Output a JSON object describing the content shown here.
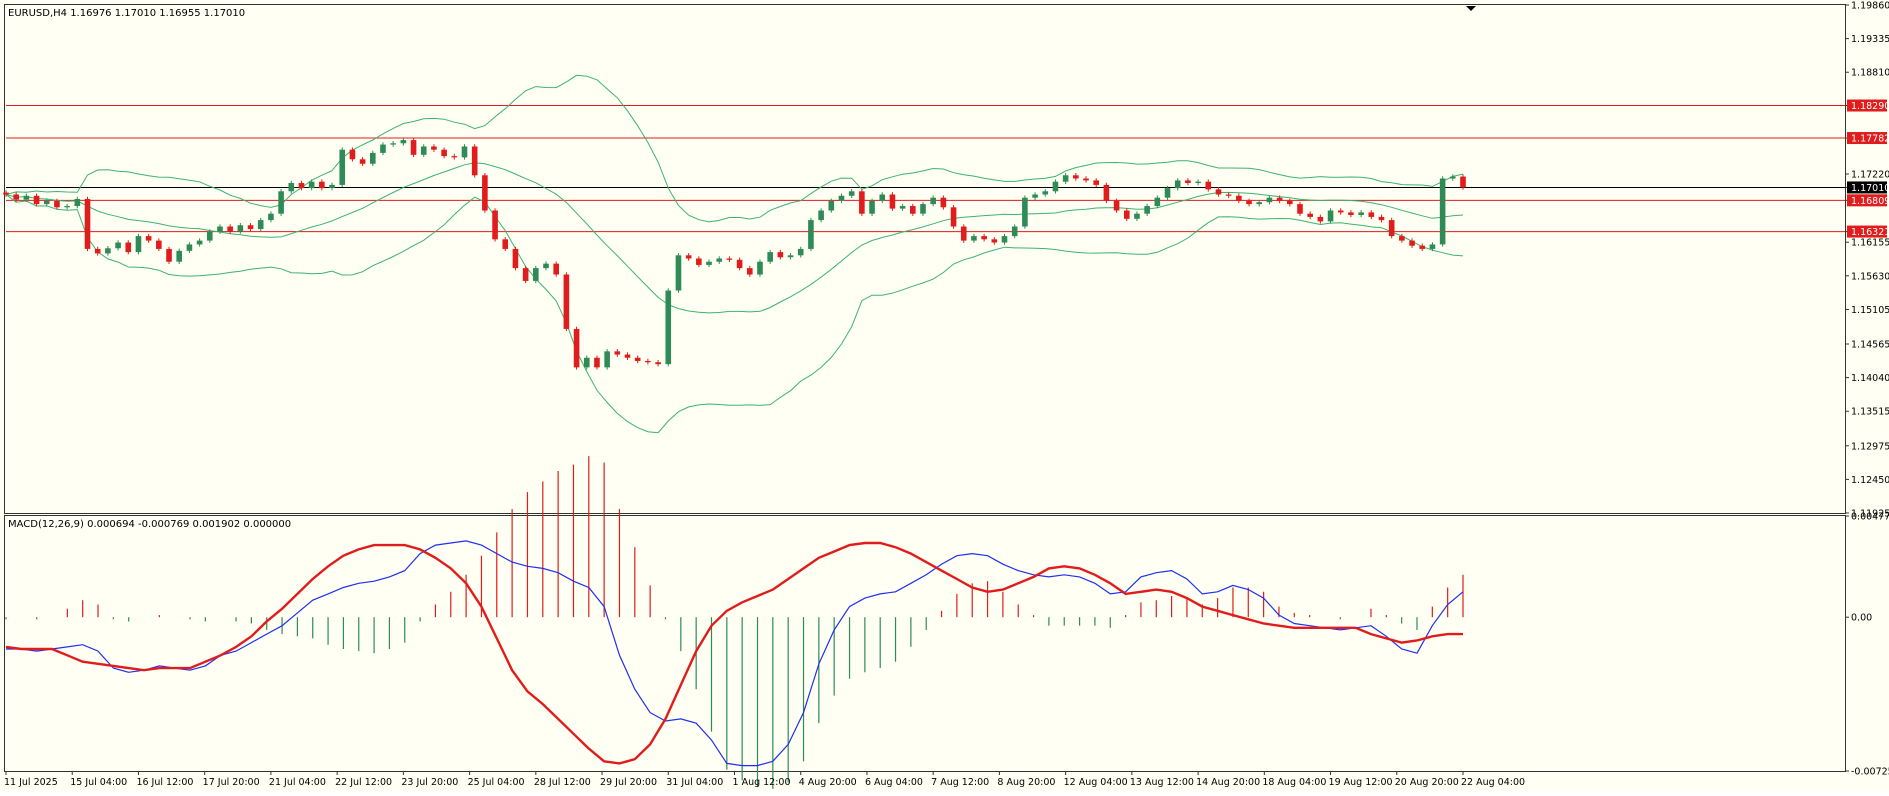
{
  "main_panel": {
    "symbol_header": "EURUSD,H4  1.16976 1.17010 1.16955 1.17010"
  },
  "macd_panel": {
    "header": "MACD(12,26,9) 0.000694 -0.000769 0.001902 0.000000"
  },
  "colors": {
    "background": "#fffff3",
    "bull_candle": "#2e8b57",
    "bear_candle": "#e01c1c",
    "bollinger": "#3cb371",
    "level_line": "#e01c1c",
    "macd_line": "#1f2ff0",
    "signal_line": "#e01c1c",
    "hist_pos": "#e01c1c",
    "hist_neg": "#2e8b57"
  },
  "chart_data": [
    {
      "type": "candlestick",
      "symbol": "EURUSD",
      "timeframe": "H4",
      "ylim": [
        1.11925,
        1.1986
      ],
      "y_ticks": [
        "1.19860",
        "1.19335",
        "1.18810",
        "1.18290",
        "1.17782",
        "1.17220",
        "1.17010",
        "1.16809",
        "1.16321",
        "1.16155",
        "1.15630",
        "1.15105",
        "1.14565",
        "1.14040",
        "1.13515",
        "1.12975",
        "1.12450",
        "1.11925"
      ],
      "x_ticks": [
        "11 Jul 2025",
        "15 Jul 04:00",
        "16 Jul 12:00",
        "17 Jul 20:00",
        "21 Jul 04:00",
        "22 Jul 12:00",
        "23 Jul 20:00",
        "25 Jul 04:00",
        "28 Jul 12:00",
        "29 Jul 20:00",
        "31 Jul 04:00",
        "1 Aug 12:00",
        "4 Aug 20:00",
        "6 Aug 04:00",
        "7 Aug 12:00",
        "8 Aug 20:00",
        "12 Aug 04:00",
        "13 Aug 12:00",
        "14 Aug 20:00",
        "18 Aug 04:00",
        "19 Aug 12:00",
        "20 Aug 20:00",
        "22 Aug 04:00"
      ],
      "close_path": [
        1.169,
        1.1682,
        1.1688,
        1.1675,
        1.168,
        1.167,
        1.1672,
        1.1683,
        1.1605,
        1.1598,
        1.1606,
        1.1615,
        1.16,
        1.1625,
        1.1618,
        1.1605,
        1.1585,
        1.1602,
        1.1612,
        1.1618,
        1.1632,
        1.164,
        1.1632,
        1.1642,
        1.1636,
        1.165,
        1.166,
        1.1695,
        1.1708,
        1.17,
        1.171,
        1.17,
        1.1705,
        1.176,
        1.1745,
        1.1738,
        1.1755,
        1.1768,
        1.177,
        1.1775,
        1.1752,
        1.1765,
        1.176,
        1.175,
        1.1748,
        1.1765,
        1.172,
        1.1665,
        1.162,
        1.1605,
        1.1575,
        1.1555,
        1.1575,
        1.1582,
        1.1565,
        1.148,
        1.142,
        1.1435,
        1.142,
        1.1445,
        1.144,
        1.1435,
        1.143,
        1.1428,
        1.1425,
        1.154,
        1.1595,
        1.159,
        1.158,
        1.1585,
        1.159,
        1.1588,
        1.1575,
        1.1565,
        1.1585,
        1.16,
        1.1592,
        1.1595,
        1.1605,
        1.165,
        1.1665,
        1.168,
        1.1688,
        1.1695,
        1.166,
        1.168,
        1.169,
        1.1668,
        1.1672,
        1.166,
        1.1675,
        1.1685,
        1.167,
        1.164,
        1.1618,
        1.1625,
        1.162,
        1.1615,
        1.1625,
        1.164,
        1.1685,
        1.169,
        1.1695,
        1.171,
        1.172,
        1.1715,
        1.1712,
        1.1705,
        1.168,
        1.1665,
        1.1652,
        1.166,
        1.1672,
        1.1685,
        1.17,
        1.1712,
        1.1708,
        1.171,
        1.1698,
        1.169,
        1.1688,
        1.168,
        1.1675,
        1.1678,
        1.1685,
        1.168,
        1.1675,
        1.166,
        1.1655,
        1.1648,
        1.1665,
        1.1662,
        1.1658,
        1.1662,
        1.1655,
        1.165,
        1.1625,
        1.1618,
        1.161,
        1.1605,
        1.1612,
        1.1715,
        1.1718,
        1.1701
      ],
      "levels": [
        {
          "label": "1.18290",
          "value": 1.1829,
          "color": "#e01c1c",
          "label_bg": "#e01c1c"
        },
        {
          "label": "1.17782",
          "value": 1.17782,
          "color": "#e01c1c",
          "label_bg": "#e01c1c"
        },
        {
          "label": "1.17010",
          "value": 1.1701,
          "color": "#000000",
          "label_bg": "#000000"
        },
        {
          "label": "1.16809",
          "value": 1.16809,
          "color": "#e01c1c",
          "label_bg": "#e01c1c"
        },
        {
          "label": "1.16321",
          "value": 1.16321,
          "color": "#e01c1c",
          "label_bg": "#e01c1c"
        }
      ],
      "indicators": [
        "Bollinger Bands"
      ]
    },
    {
      "type": "macd",
      "ylim": [
        -0.007257,
        0.004774
      ],
      "y_ticks": [
        "0.004774",
        "0.00",
        "-0.007257"
      ],
      "macd_path": [
        -0.0015,
        -0.0015,
        -0.0016,
        -0.0015,
        -0.0014,
        -0.0013,
        -0.0016,
        -0.0024,
        -0.0026,
        -0.0025,
        -0.0023,
        -0.0024,
        -0.0025,
        -0.0023,
        -0.0018,
        -0.0016,
        -0.0012,
        -0.0008,
        -0.0004,
        0.0002,
        0.0008,
        0.0011,
        0.0014,
        0.0016,
        0.0017,
        0.0019,
        0.0022,
        0.003,
        0.0034,
        0.0035,
        0.0036,
        0.0034,
        0.003,
        0.0026,
        0.0024,
        0.0023,
        0.0021,
        0.0017,
        0.0014,
        0.0005,
        -0.0018,
        -0.0034,
        -0.0045,
        -0.0049,
        -0.0048,
        -0.005,
        -0.0058,
        -0.0069,
        -0.007,
        -0.007,
        -0.0068,
        -0.006,
        -0.0045,
        -0.0022,
        -0.0006,
        0.0005,
        0.0009,
        0.0011,
        0.0012,
        0.0016,
        0.002,
        0.0025,
        0.0029,
        0.003,
        0.0029,
        0.0025,
        0.0022,
        0.002,
        0.0019,
        0.002,
        0.0019,
        0.0016,
        0.0011,
        0.0012,
        0.0019,
        0.0021,
        0.0022,
        0.0018,
        0.0011,
        0.0012,
        0.0015,
        0.0013,
        0.0009,
        0.0001,
        -0.0003,
        -0.0004,
        -0.0005,
        -0.0006,
        -0.0005,
        -0.0004,
        -0.0009,
        -0.0015,
        -0.0017,
        -0.0004,
        0.0006,
        0.0012
      ],
      "signal_path": [
        -0.0014,
        -0.0015,
        -0.0015,
        -0.0015,
        -0.0018,
        -0.0021,
        -0.0022,
        -0.0023,
        -0.0024,
        -0.0025,
        -0.0024,
        -0.0024,
        -0.0024,
        -0.0021,
        -0.0018,
        -0.0014,
        -0.0009,
        -0.0002,
        0.0004,
        0.0011,
        0.0018,
        0.0024,
        0.0029,
        0.0032,
        0.0034,
        0.0034,
        0.0034,
        0.0032,
        0.0028,
        0.0023,
        0.0016,
        0.0005,
        -0.001,
        -0.0025,
        -0.0035,
        -0.0041,
        -0.0048,
        -0.0055,
        -0.0062,
        -0.0068,
        -0.0069,
        -0.0067,
        -0.006,
        -0.0048,
        -0.0032,
        -0.0016,
        -0.0004,
        0.0003,
        0.0007,
        0.001,
        0.0013,
        0.0018,
        0.0023,
        0.0028,
        0.0031,
        0.0034,
        0.0035,
        0.0035,
        0.0033,
        0.003,
        0.0026,
        0.0022,
        0.0018,
        0.0014,
        0.0012,
        0.0013,
        0.0016,
        0.0019,
        0.0023,
        0.0024,
        0.0023,
        0.002,
        0.0016,
        0.0011,
        0.0012,
        0.0013,
        0.0012,
        0.0009,
        0.0005,
        0.0003,
        0.0001,
        -0.0001,
        -0.0003,
        -0.0004,
        -0.0005,
        -0.0005,
        -0.0005,
        -0.0005,
        -0.0005,
        -0.0008,
        -0.001,
        -0.0012,
        -0.0011,
        -0.0009,
        -0.0008,
        -0.0008
      ]
    }
  ]
}
